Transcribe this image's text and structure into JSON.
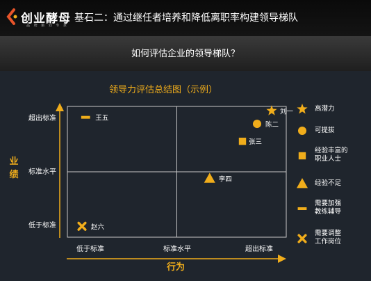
{
  "header": {
    "logo_text": "创业酵母",
    "logo_sub": "品 牌 策 划 专 家",
    "title": "基石二：通过继任者培养和降低离职率构建领导梯队"
  },
  "question": "如何评估企业的领导梯队？",
  "chart_data": {
    "type": "scatter",
    "title": "领导力评估总结图（示例）",
    "xlabel": "行为",
    "ylabel": "业绩",
    "categories_x": [
      "低于标准",
      "标准水平",
      "超出标准"
    ],
    "categories_y": [
      "低于标准",
      "标准水平",
      "超出标准"
    ],
    "points": [
      {
        "name": "刘一",
        "x": 2.8,
        "y": 2.9,
        "marker": "star"
      },
      {
        "name": "陈二",
        "x": 2.6,
        "y": 2.6,
        "marker": "circle"
      },
      {
        "name": "张三",
        "x": 2.4,
        "y": 2.2,
        "marker": "square"
      },
      {
        "name": "李四",
        "x": 1.95,
        "y": 1.35,
        "marker": "triangle"
      },
      {
        "name": "王五",
        "x": 0.25,
        "y": 2.75,
        "marker": "dash"
      },
      {
        "name": "赵六",
        "x": 0.2,
        "y": 0.25,
        "marker": "cross"
      }
    ],
    "grid": false,
    "legend_position": "right"
  },
  "legend": [
    {
      "marker": "star",
      "label": "高潜力"
    },
    {
      "marker": "circle",
      "label": "可提拔"
    },
    {
      "marker": "square",
      "label": "经验丰富的\n职业人士"
    },
    {
      "marker": "triangle",
      "label": "经验不足"
    },
    {
      "marker": "dash",
      "label": "需要加强\n教练辅导"
    },
    {
      "marker": "cross",
      "label": "需要调整\n工作岗位"
    }
  ],
  "colors": {
    "accent": "#f0ad1b",
    "background": "#1f252d",
    "plot_border": "#c8c8c8",
    "text": "#ffffff"
  }
}
